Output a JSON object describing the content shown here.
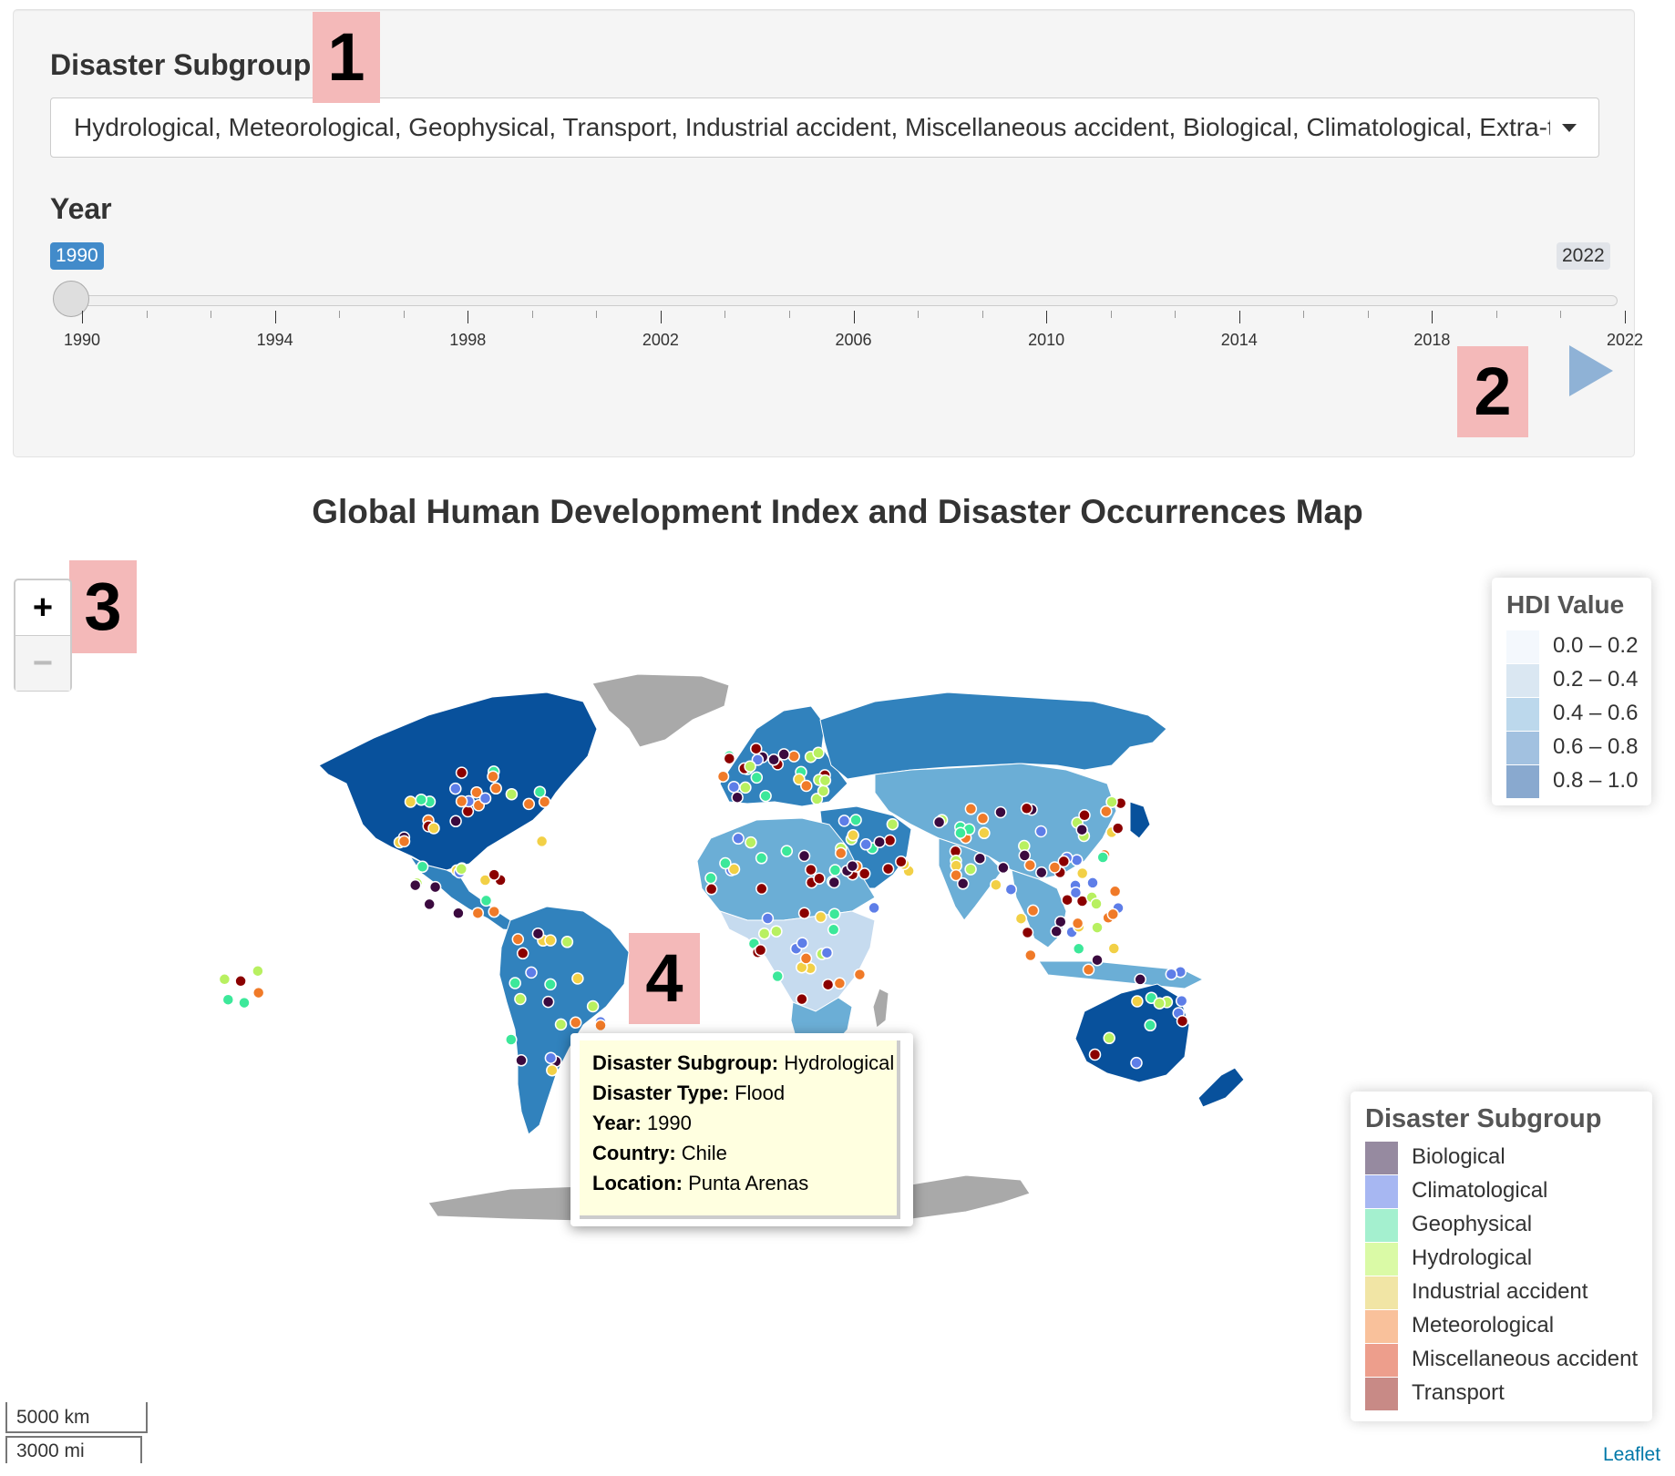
{
  "controls": {
    "subgroup_label": "Disaster Subgroup",
    "subgroup_value": "Hydrological, Meteorological, Geophysical, Transport, Industrial accident, Miscellaneous accident, Biological, Climatological, Extra-terrestrial",
    "year_label": "Year",
    "year_value": "1990",
    "year_max": "2022",
    "year_ticks": [
      "1990",
      "1994",
      "1998",
      "2002",
      "2006",
      "2010",
      "2014",
      "2018",
      "2022"
    ],
    "play_icon": "play-icon"
  },
  "annotations": [
    "1",
    "2",
    "3",
    "4"
  ],
  "map": {
    "title": "Global Human Development Index and Disaster Occurrences Map",
    "zoom_in": "+",
    "zoom_out": "−",
    "scale_km": "5000 km",
    "scale_mi": "3000 mi",
    "attribution": "Leaflet"
  },
  "hdi_legend": {
    "title": "HDI Value",
    "items": [
      {
        "label": "0.0 – 0.2",
        "color": "#f4f8fd"
      },
      {
        "label": "0.2 – 0.4",
        "color": "#dae7f2"
      },
      {
        "label": "0.4 – 0.6",
        "color": "#bcd8ec"
      },
      {
        "label": "0.6 – 0.8",
        "color": "#a2c1e0"
      },
      {
        "label": "0.8 – 1.0",
        "color": "#89a9cf"
      }
    ]
  },
  "subgroup_legend": {
    "title": "Disaster Subgroup",
    "items": [
      {
        "label": "Biological",
        "color": "#968aa0"
      },
      {
        "label": "Climatological",
        "color": "#a7b7f2"
      },
      {
        "label": "Geophysical",
        "color": "#a4f0cf"
      },
      {
        "label": "Hydrological",
        "color": "#dafaa6"
      },
      {
        "label": "Industrial accident",
        "color": "#f1e5a5"
      },
      {
        "label": "Meteorological",
        "color": "#f9c19b"
      },
      {
        "label": "Miscellaneous accident",
        "color": "#ed9e8c"
      },
      {
        "label": "Transport",
        "color": "#c88a86"
      }
    ]
  },
  "popup": {
    "rows": [
      {
        "key": "Disaster Subgroup:",
        "value": " Hydrological"
      },
      {
        "key": "Disaster Type:",
        "value": " Flood"
      },
      {
        "key": "Year:",
        "value": " 1990"
      },
      {
        "key": "Country:",
        "value": " Chile"
      },
      {
        "key": "Location:",
        "value": " Punta Arenas"
      }
    ]
  },
  "colors": {
    "hdi_very_high": "#08519c",
    "hdi_high": "#3182bd",
    "hdi_medium": "#6baed6",
    "hdi_low": "#c6dbef",
    "no_data": "#a9a9a9",
    "marker_hydrological": "#b8f060",
    "marker_meteorological": "#f07a28",
    "marker_geophysical": "#3ce89a",
    "marker_transport": "#8b0000",
    "marker_biological": "#3b0a3f",
    "marker_climatological": "#5e7ee8",
    "marker_industrial": "#f2d046"
  }
}
